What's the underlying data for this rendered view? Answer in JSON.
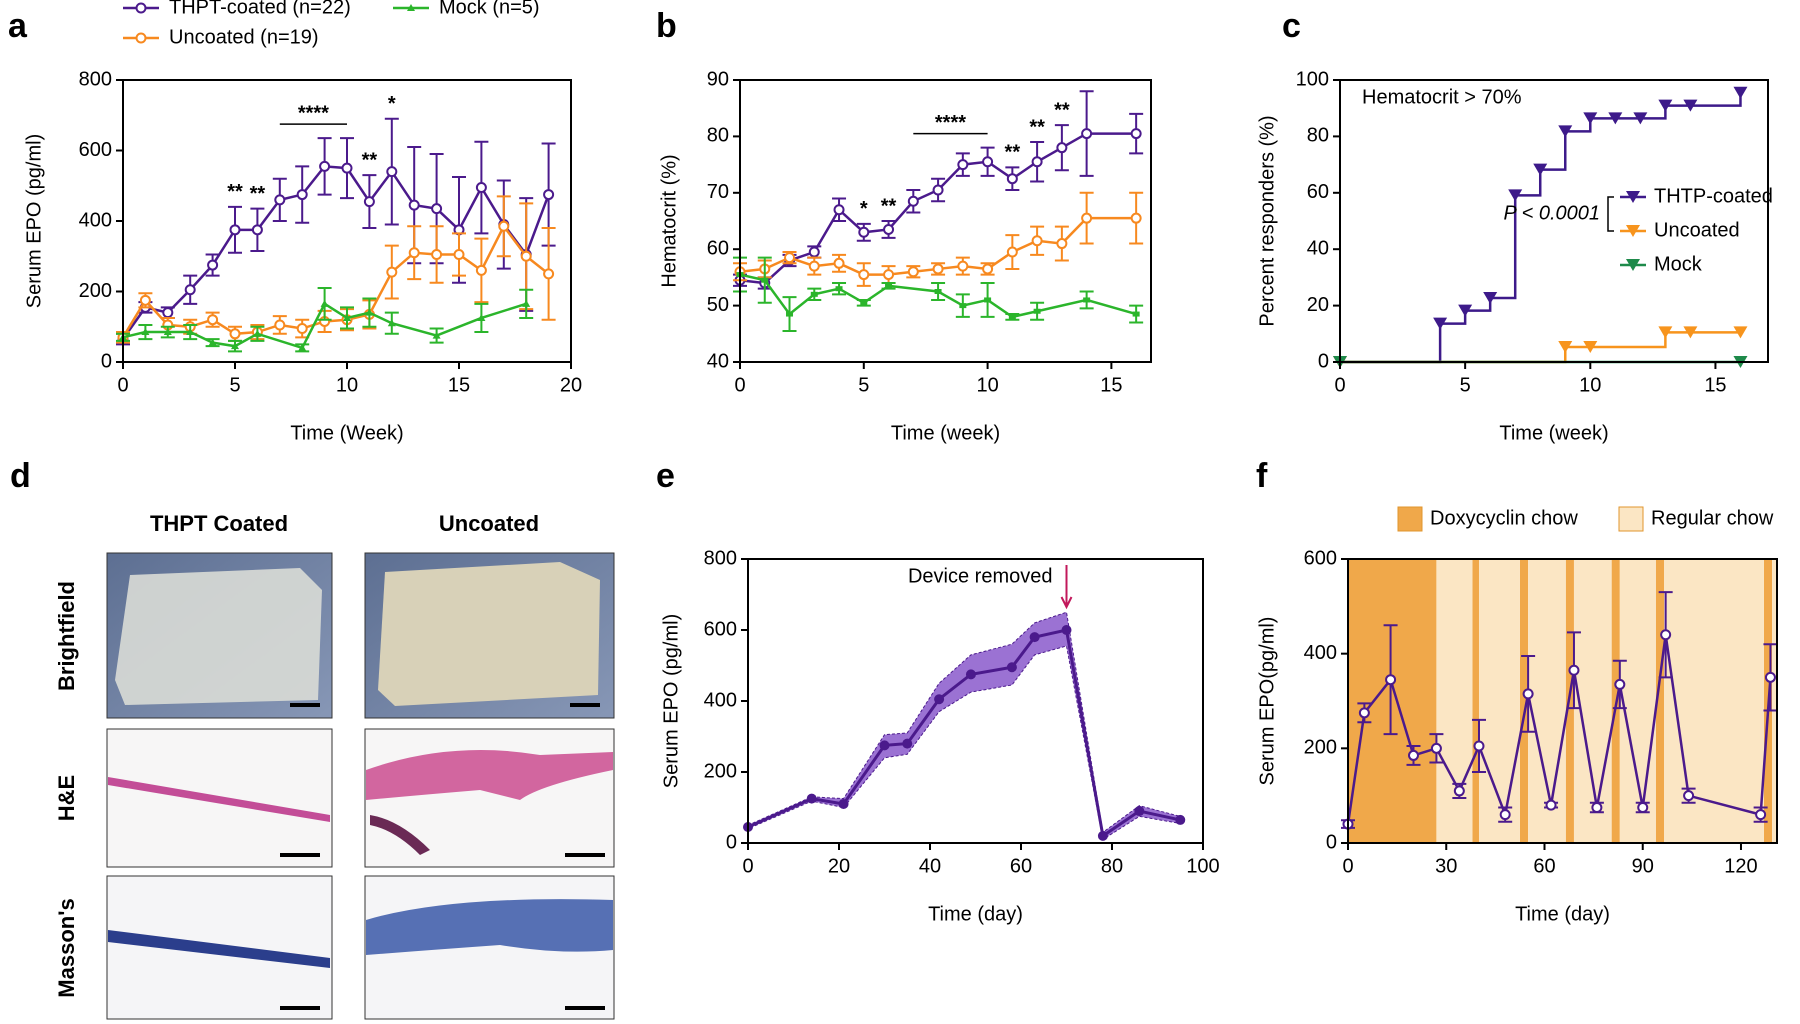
{
  "chart_data": [
    {
      "type": "line",
      "panel": "a",
      "xlabel": "Time (Week)",
      "ylabel": "Serum EPO (pg/ml)",
      "xlim": [
        0,
        20
      ],
      "xticks": [
        0,
        5,
        10,
        15,
        20
      ],
      "ylim": [
        0,
        800
      ],
      "yticks": [
        0,
        200,
        400,
        600,
        800
      ],
      "legend": "top",
      "series": [
        {
          "name": "THPT-coated (n=22)",
          "color": "#4b1a8c",
          "marker": "open-circle",
          "x": [
            0,
            1,
            2,
            3,
            4,
            5,
            6,
            7,
            8,
            9,
            10,
            11,
            12,
            13,
            14,
            15,
            16,
            17,
            18,
            19
          ],
          "values": [
            65,
            155,
            140,
            205,
            275,
            375,
            375,
            460,
            475,
            555,
            550,
            455,
            540,
            445,
            435,
            375,
            495,
            390,
            305,
            475
          ],
          "errors": [
            15,
            15,
            15,
            40,
            30,
            65,
            60,
            60,
            80,
            80,
            85,
            75,
            150,
            165,
            155,
            150,
            130,
            125,
            160,
            145
          ]
        },
        {
          "name": "Uncoated (n=19)",
          "color": "#f7891f",
          "marker": "open-circle",
          "x": [
            0,
            1,
            2,
            3,
            4,
            5,
            6,
            7,
            8,
            9,
            10,
            11,
            12,
            13,
            14,
            15,
            16,
            17,
            18,
            19
          ],
          "values": [
            70,
            175,
            105,
            100,
            120,
            80,
            85,
            105,
            95,
            115,
            120,
            135,
            255,
            310,
            305,
            305,
            260,
            385,
            300,
            250
          ],
          "errors": [
            15,
            20,
            20,
            20,
            20,
            20,
            20,
            25,
            25,
            30,
            30,
            40,
            75,
            75,
            80,
            60,
            90,
            85,
            150,
            130
          ]
        },
        {
          "name": "Mock (n=5)",
          "color": "#2bb52b",
          "marker": "triangle",
          "x": [
            0,
            1,
            2,
            3,
            4,
            5,
            6,
            8,
            9,
            10,
            11,
            12,
            14,
            16,
            18
          ],
          "values": [
            70,
            85,
            85,
            85,
            55,
            45,
            80,
            40,
            165,
            125,
            140,
            110,
            75,
            125,
            165
          ],
          "errors": [
            10,
            20,
            15,
            20,
            10,
            15,
            20,
            10,
            45,
            30,
            40,
            30,
            20,
            40,
            40
          ]
        }
      ],
      "annotations": [
        {
          "text": "**",
          "x": 5
        },
        {
          "text": "**",
          "x": 6
        },
        {
          "text": "****",
          "x": [
            7,
            10
          ]
        },
        {
          "text": "**",
          "x": 11
        },
        {
          "text": "*",
          "x": 12
        }
      ]
    },
    {
      "type": "line",
      "panel": "b",
      "xlabel": "Time (week)",
      "ylabel": "Hematocrit (%)",
      "xlim": [
        0,
        16.6
      ],
      "xticks": [
        0,
        5,
        10,
        15
      ],
      "ylim": [
        40,
        90
      ],
      "yticks": [
        40,
        50,
        60,
        70,
        80,
        90
      ],
      "series": [
        {
          "color": "#4b1a8c",
          "marker": "open-circle",
          "x": [
            0,
            1,
            2,
            3,
            4,
            5,
            6,
            7,
            8,
            9,
            10,
            11,
            12,
            13,
            14,
            16
          ],
          "values": [
            54.5,
            54,
            58,
            59.5,
            67,
            63,
            63.5,
            68.5,
            70.5,
            75,
            75.5,
            72.5,
            75.5,
            78,
            80.5,
            80.5
          ],
          "errors": [
            1,
            1,
            1,
            1,
            2,
            1.5,
            1.5,
            2,
            2,
            2,
            2.5,
            2,
            3.5,
            4,
            7.5,
            3.5
          ]
        },
        {
          "color": "#f7891f",
          "marker": "open-circle",
          "x": [
            0,
            1,
            2,
            3,
            4,
            5,
            6,
            7,
            8,
            9,
            10,
            11,
            12,
            13,
            14,
            16
          ],
          "values": [
            56,
            56.5,
            58.5,
            57,
            57.5,
            55.5,
            55.5,
            56,
            56.5,
            57,
            56.5,
            59.5,
            61.5,
            61,
            65.5,
            65.5
          ],
          "errors": [
            1.5,
            1.5,
            1,
            1.5,
            1.5,
            2,
            1.5,
            1,
            1,
            1.5,
            1,
            3,
            2.5,
            3,
            4.5,
            4.5
          ]
        },
        {
          "color": "#2bb52b",
          "marker": "square",
          "x": [
            0,
            1,
            2,
            3,
            4,
            5,
            6,
            8,
            9,
            10,
            11,
            12,
            14,
            16
          ],
          "values": [
            55.5,
            54.5,
            48.5,
            52,
            53,
            50.5,
            53.5,
            52.5,
            50,
            51,
            48,
            49,
            51,
            48.5
          ],
          "errors": [
            3,
            4,
            3,
            1,
            1,
            0.5,
            0.5,
            1.5,
            2,
            3,
            0.5,
            1.5,
            1.5,
            1.5
          ]
        }
      ],
      "annotations": [
        {
          "text": "*",
          "x": 5
        },
        {
          "text": "**",
          "x": 6
        },
        {
          "text": "****",
          "x": [
            7,
            10
          ]
        },
        {
          "text": "**",
          "x": 11
        },
        {
          "text": "**",
          "x": 12
        },
        {
          "text": "**",
          "x": 13
        }
      ]
    },
    {
      "type": "step",
      "panel": "c",
      "xlabel": "Time (week)",
      "ylabel": "Percent responders (%)",
      "xlim": [
        0,
        17.1
      ],
      "xticks": [
        0,
        5,
        10,
        15
      ],
      "ylim": [
        0,
        100
      ],
      "yticks": [
        0,
        20,
        40,
        60,
        80,
        100
      ],
      "legend": "right",
      "note": "Hematocrit > 70%",
      "pvalue": "P < 0.0001",
      "series": [
        {
          "name": "THTP-coated",
          "color": "#3d1a8a",
          "x": [
            0,
            4,
            5,
            6,
            7,
            8,
            9,
            10,
            11,
            12,
            13,
            14,
            16
          ],
          "values": [
            0,
            13.6,
            18.2,
            22.7,
            59.1,
            68.2,
            81.8,
            86.4,
            86.4,
            86.4,
            90.9,
            90.9,
            95.5
          ]
        },
        {
          "name": "Uncoated",
          "color": "#f7941d",
          "x": [
            0,
            9,
            10,
            13,
            14,
            16
          ],
          "values": [
            0,
            5.3,
            5.3,
            10.5,
            10.5,
            10.5
          ]
        },
        {
          "name": "Mock",
          "color": "#1e8a4a",
          "x": [
            0,
            16
          ],
          "values": [
            0,
            0
          ]
        }
      ]
    },
    {
      "type": "band",
      "panel": "e",
      "xlabel": "Time (day)",
      "ylabel": "Serum EPO (pg/ml)",
      "xlim": [
        0,
        100
      ],
      "xticks": [
        0,
        20,
        40,
        60,
        80,
        100
      ],
      "ylim": [
        0,
        800
      ],
      "yticks": [
        0,
        200,
        400,
        600,
        800
      ],
      "series": [
        {
          "color": "#4b1a8c",
          "band_color": "#9b72d3",
          "x": [
            0,
            14,
            21,
            30,
            35,
            42,
            49,
            58,
            63,
            70,
            78,
            86,
            95
          ],
          "values": [
            45,
            125,
            110,
            275,
            280,
            405,
            475,
            495,
            580,
            600,
            20,
            90,
            65
          ],
          "lower": [
            40,
            118,
            100,
            240,
            250,
            370,
            425,
            445,
            530,
            555,
            10,
            75,
            55
          ],
          "upper": [
            50,
            130,
            125,
            305,
            310,
            450,
            530,
            560,
            620,
            650,
            30,
            105,
            75
          ]
        }
      ],
      "annotations": [
        {
          "text": "Device removed",
          "x": 70,
          "color": "#c2185b"
        }
      ]
    },
    {
      "type": "line",
      "panel": "f",
      "xlabel": "Time (day)",
      "ylabel": "Serum EPO(pg/ml)",
      "xlim": [
        0,
        131
      ],
      "xticks": [
        0,
        30,
        60,
        90,
        120
      ],
      "ylim": [
        0,
        600
      ],
      "yticks": [
        0,
        200,
        400,
        600
      ],
      "bands": [
        {
          "name": "Doxycyclin chow",
          "color": "#f0a84a",
          "ranges": [
            [
              0,
              27
            ],
            [
              38,
              40
            ],
            [
              52.5,
              55
            ],
            [
              66.5,
              69
            ],
            [
              80.5,
              83
            ],
            [
              94,
              96.5
            ],
            [
              127,
              129.5
            ]
          ]
        },
        {
          "name": "Regular chow",
          "color": "#fbe6c4",
          "ranges": [
            [
              27,
              38
            ],
            [
              40,
              52.5
            ],
            [
              55,
              66.5
            ],
            [
              69,
              80.5
            ],
            [
              83,
              94
            ],
            [
              96.5,
              127
            ],
            [
              129.5,
              131
            ]
          ]
        }
      ],
      "series": [
        {
          "color": "#4b1a8c",
          "marker": "open-circle",
          "x": [
            0,
            5,
            13,
            20,
            27,
            34,
            40,
            48,
            55,
            62,
            69,
            76,
            83,
            90,
            97,
            104,
            126,
            129
          ],
          "values": [
            40,
            275,
            345,
            185,
            200,
            110,
            205,
            60,
            315,
            80,
            365,
            75,
            335,
            75,
            440,
            100,
            60,
            350
          ],
          "errors": [
            8,
            20,
            115,
            20,
            30,
            15,
            55,
            15,
            80,
            5,
            80,
            10,
            50,
            10,
            90,
            15,
            15,
            70
          ]
        }
      ]
    }
  ],
  "panel_d": {
    "label": "d",
    "columns": [
      "THPT Coated",
      "Uncoated"
    ],
    "rows": [
      "Brightfield",
      "H&E",
      "Masson's"
    ]
  }
}
